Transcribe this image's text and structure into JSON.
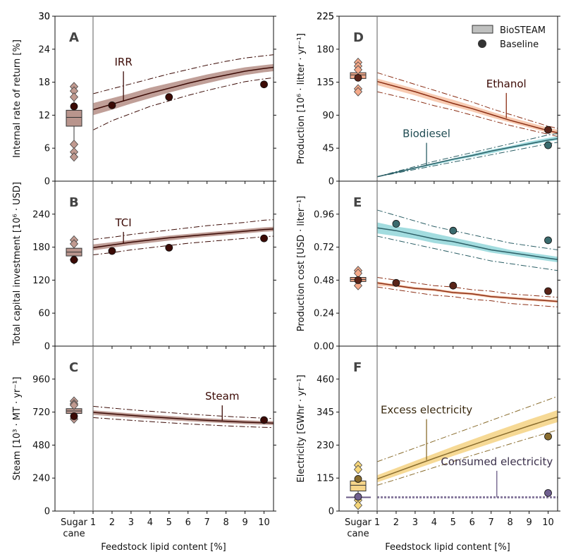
{
  "figure": {
    "legend": {
      "biosteam_label": "BioSTEAM",
      "baseline_label": "Baseline"
    },
    "xlabel": "Feedstock lipid content [%]",
    "sugarcane_label_line1": "Sugar",
    "sugarcane_label_line2": "cane",
    "xticks": [
      1,
      2,
      3,
      4,
      5,
      6,
      7,
      8,
      9,
      10
    ]
  },
  "colors": {
    "brown": "#3b0a05",
    "brown_band": "#b9958d",
    "brown_box": "#b9958d",
    "orange": "#8b2e14",
    "orange_band": "#f6c4a8",
    "orange_box": "#f2a98a",
    "teal": "#2c5f66",
    "teal_band": "#98d8dc",
    "teal_marker": "#3a6b6e",
    "gold": "#8a6d2e",
    "gold_band": "#f5d58a",
    "gold_box": "#f5d58a",
    "purple": "#6a5a86",
    "purple_marker": "#6f5f8f",
    "diamond_brown": "#c19a90",
    "diamond_orange": "#f4a98a",
    "diamond_gold": "#f6d67a"
  },
  "chart_data": [
    {
      "panel": "A",
      "type": "line",
      "ylabel": "Internal rate of return [%]",
      "ylim": [
        0,
        30
      ],
      "yticks": [
        0,
        6,
        12,
        18,
        24,
        30
      ],
      "sugarcane": {
        "box": [
          10,
          12.9
        ],
        "median": 11.6,
        "whisker": [
          7,
          15.2
        ],
        "baseline": 13.6,
        "diamonds": [
          17.2,
          16.4,
          15.3,
          6.7,
          5.3,
          4.4
        ]
      },
      "series": [
        {
          "annotation": "IRR",
          "x": [
            1,
            2,
            3,
            4,
            5,
            6,
            7,
            8,
            9,
            10,
            10.5
          ],
          "median": [
            13.0,
            14.0,
            15.0,
            16.0,
            16.9,
            17.8,
            18.6,
            19.3,
            20.0,
            20.5,
            20.7
          ],
          "band_low": [
            12.0,
            13.0,
            14.1,
            15.1,
            16.1,
            17.0,
            17.8,
            18.6,
            19.3,
            19.8,
            20.0
          ],
          "band_high": [
            14.2,
            15.1,
            16.0,
            17.0,
            17.8,
            18.6,
            19.4,
            20.1,
            20.7,
            21.1,
            21.3
          ],
          "ci_low": [
            9.3,
            11.0,
            12.3,
            13.6,
            14.6,
            15.6,
            16.5,
            17.3,
            18.1,
            18.6,
            18.8
          ],
          "ci_high": [
            15.9,
            16.8,
            17.7,
            18.6,
            19.5,
            20.3,
            21.1,
            21.8,
            22.4,
            22.8,
            23.0
          ],
          "baseline_x": [
            2,
            5,
            10
          ],
          "baseline_y": [
            13.8,
            15.3,
            17.6
          ]
        }
      ]
    },
    {
      "panel": "B",
      "type": "line",
      "ylabel": "Total capital investment [10⁶ · USD]",
      "ylim": [
        0,
        300
      ],
      "yticks": [
        0,
        60,
        120,
        180,
        240
      ],
      "sugarcane": {
        "box": [
          164,
          178
        ],
        "median": 171,
        "whisker": [
          158,
          185
        ],
        "baseline": 157,
        "diamonds": [
          193,
          186,
          157
        ]
      },
      "series": [
        {
          "annotation": "TCI",
          "x": [
            1,
            2,
            3,
            4,
            5,
            6,
            7,
            8,
            9,
            10,
            10.5
          ],
          "median": [
            179,
            184,
            189,
            193,
            197,
            200,
            203,
            206,
            209,
            212,
            213
          ],
          "band_low": [
            174,
            179,
            184,
            188,
            192,
            196,
            199,
            202,
            205,
            208,
            209
          ],
          "band_high": [
            185,
            189,
            193,
            197,
            201,
            204,
            207,
            210,
            213,
            216,
            217
          ],
          "ci_low": [
            166,
            170,
            175,
            179,
            183,
            187,
            190,
            193,
            196,
            199,
            200
          ],
          "ci_high": [
            194,
            198,
            203,
            207,
            211,
            215,
            219,
            222,
            225,
            229,
            230
          ],
          "baseline_x": [
            2,
            5,
            10
          ],
          "baseline_y": [
            173,
            179,
            196
          ]
        }
      ]
    },
    {
      "panel": "C",
      "type": "line",
      "ylabel": "Steam [10³ · MT · yr⁻¹]",
      "ylim": [
        0,
        1200
      ],
      "yticks": [
        0,
        240,
        480,
        720,
        960
      ],
      "sugarcane": {
        "box": [
          710,
          745
        ],
        "median": 728,
        "whisker": [
          680,
          770
        ],
        "baseline": 690,
        "diamonds": [
          800,
          780,
          770,
          670
        ]
      },
      "series": [
        {
          "annotation": "Steam",
          "x": [
            1,
            2,
            3,
            4,
            5,
            6,
            7,
            8,
            9,
            10,
            10.5
          ],
          "median": [
            718,
            707,
            696,
            686,
            677,
            668,
            660,
            653,
            647,
            642,
            640
          ],
          "band_low": [
            700,
            690,
            680,
            670,
            661,
            653,
            646,
            639,
            633,
            628,
            626
          ],
          "band_high": [
            733,
            722,
            711,
            701,
            692,
            683,
            675,
            668,
            661,
            656,
            654
          ],
          "ci_low": [
            680,
            670,
            660,
            651,
            642,
            634,
            627,
            620,
            614,
            609,
            607
          ],
          "ci_high": [
            762,
            749,
            737,
            726,
            716,
            706,
            697,
            689,
            682,
            676,
            673
          ],
          "baseline_x": [
            10
          ],
          "baseline_y": [
            662
          ]
        }
      ]
    },
    {
      "panel": "D",
      "type": "line",
      "ylabel": "Production [10⁶ · litter · yr⁻¹]",
      "ylim": [
        0,
        225
      ],
      "yticks": [
        0,
        45,
        90,
        135,
        180,
        225
      ],
      "sugarcane": {
        "box": [
          140,
          148
        ],
        "median": 145,
        "whisker": [
          136,
          152
        ],
        "baseline": 141,
        "diamonds": [
          162,
          157,
          152,
          126,
          122
        ]
      },
      "series": [
        {
          "annotation": "Ethanol",
          "x": [
            1,
            2,
            3,
            4,
            5,
            6,
            7,
            8,
            9,
            10,
            10.5
          ],
          "median": [
            136,
            129,
            122,
            114,
            106,
            99,
            91,
            83,
            76,
            69,
            66
          ],
          "band_low": [
            131,
            124,
            117,
            109,
            102,
            95,
            87,
            80,
            73,
            66,
            63
          ],
          "band_high": [
            140,
            133,
            126,
            118,
            111,
            103,
            95,
            87,
            80,
            73,
            70
          ],
          "ci_low": [
            122,
            116,
            110,
            103,
            97,
            90,
            83,
            76,
            70,
            64,
            61
          ],
          "ci_high": [
            148,
            140,
            132,
            124,
            116,
            108,
            99,
            91,
            83,
            75,
            72
          ],
          "baseline_x": [
            10
          ],
          "baseline_y": [
            70
          ]
        },
        {
          "annotation": "Biodiesel",
          "x": [
            1,
            2,
            3,
            4,
            5,
            6,
            7,
            8,
            9,
            10,
            10.5
          ],
          "median": [
            6,
            12,
            18,
            24,
            30,
            35,
            41,
            46,
            51,
            56,
            58
          ],
          "band_low": [
            6,
            11,
            17,
            22,
            28,
            33,
            38,
            44,
            49,
            54,
            56
          ],
          "band_high": [
            6,
            13,
            19,
            25,
            31,
            37,
            43,
            48,
            54,
            59,
            61
          ],
          "ci_low": [
            6,
            11,
            16,
            21,
            26,
            31,
            36,
            41,
            46,
            51,
            53
          ],
          "ci_high": [
            6,
            13,
            20,
            27,
            33,
            39,
            45,
            51,
            57,
            63,
            65
          ],
          "baseline_x": [
            10
          ],
          "baseline_y": [
            49
          ]
        }
      ]
    },
    {
      "panel": "E",
      "type": "line",
      "ylabel": "Production cost [USD · liter⁻¹]",
      "ylim": [
        0,
        1.2
      ],
      "yticks": [
        0.0,
        0.24,
        0.48,
        0.72,
        0.96
      ],
      "ytick_labels": [
        "0.00",
        "0.24",
        "0.48",
        "0.72",
        "0.96"
      ],
      "sugarcane": {
        "box": [
          0.47,
          0.5
        ],
        "median": 0.485,
        "whisker": [
          0.455,
          0.515
        ],
        "baseline": 0.48,
        "diamonds": [
          0.55,
          0.53,
          0.44
        ]
      },
      "series": [
        {
          "annotation": "",
          "x": [
            1,
            2,
            3,
            4,
            5,
            6,
            7,
            8,
            9,
            10,
            10.5
          ],
          "median": [
            0.86,
            0.84,
            0.81,
            0.78,
            0.76,
            0.73,
            0.7,
            0.68,
            0.66,
            0.64,
            0.63
          ],
          "band_low": [
            0.82,
            0.8,
            0.78,
            0.75,
            0.73,
            0.71,
            0.68,
            0.66,
            0.64,
            0.62,
            0.61
          ],
          "band_high": [
            0.9,
            0.87,
            0.85,
            0.82,
            0.79,
            0.76,
            0.73,
            0.7,
            0.68,
            0.66,
            0.65
          ],
          "ci_low": [
            0.8,
            0.77,
            0.74,
            0.71,
            0.68,
            0.65,
            0.62,
            0.6,
            0.58,
            0.56,
            0.55
          ],
          "ci_high": [
            0.99,
            0.95,
            0.91,
            0.87,
            0.84,
            0.81,
            0.78,
            0.75,
            0.73,
            0.71,
            0.7
          ],
          "baseline_x": [
            2,
            5,
            10
          ],
          "baseline_y": [
            0.89,
            0.84,
            0.77
          ]
        },
        {
          "annotation": "",
          "x": [
            1,
            2,
            3,
            4,
            5,
            6,
            7,
            8,
            9,
            10,
            10.5
          ],
          "median": [
            0.46,
            0.44,
            0.42,
            0.41,
            0.39,
            0.38,
            0.36,
            0.35,
            0.34,
            0.33,
            0.325
          ],
          "band_low": [
            0.44,
            0.43,
            0.41,
            0.4,
            0.38,
            0.37,
            0.35,
            0.34,
            0.33,
            0.32,
            0.315
          ],
          "band_high": [
            0.47,
            0.45,
            0.43,
            0.42,
            0.4,
            0.39,
            0.37,
            0.36,
            0.35,
            0.34,
            0.335
          ],
          "ci_low": [
            0.43,
            0.41,
            0.39,
            0.37,
            0.36,
            0.34,
            0.33,
            0.31,
            0.3,
            0.29,
            0.285
          ],
          "ci_high": [
            0.5,
            0.48,
            0.46,
            0.44,
            0.43,
            0.41,
            0.4,
            0.38,
            0.37,
            0.36,
            0.355
          ],
          "baseline_x": [
            2,
            5,
            10
          ],
          "baseline_y": [
            0.46,
            0.44,
            0.4
          ]
        }
      ]
    },
    {
      "panel": "F",
      "type": "line",
      "ylabel": "Electricity [GWhr · yr⁻¹]",
      "ylim": [
        0,
        575
      ],
      "yticks": [
        0,
        115,
        230,
        345,
        460
      ],
      "sugarcane": {
        "box": [
          70,
          105
        ],
        "median": 90,
        "whisker": [
          50,
          125
        ],
        "baseline": 112,
        "diamonds": [
          160,
          145,
          38,
          20
        ]
      },
      "sugarcane_consumed": {
        "baseline": 50,
        "line": 48
      },
      "series": [
        {
          "annotation": "Excess electricity",
          "x": [
            1,
            2,
            3,
            4,
            5,
            6,
            7,
            8,
            9,
            10,
            10.5
          ],
          "median": [
            112,
            136,
            160,
            184,
            207,
            230,
            253,
            275,
            297,
            318,
            328
          ],
          "band_low": [
            100,
            123,
            146,
            169,
            192,
            214,
            236,
            258,
            279,
            300,
            310
          ],
          "band_high": [
            125,
            150,
            175,
            200,
            225,
            249,
            273,
            296,
            319,
            341,
            352
          ],
          "ci_low": [
            90,
            110,
            131,
            152,
            173,
            194,
            214,
            234,
            254,
            273,
            283
          ],
          "ci_high": [
            172,
            196,
            220,
            244,
            268,
            292,
            316,
            340,
            364,
            388,
            400
          ],
          "baseline_x": [
            10
          ],
          "baseline_y": [
            260
          ]
        },
        {
          "annotation": "Consumed electricity",
          "x": [
            1,
            2,
            3,
            4,
            5,
            6,
            7,
            8,
            9,
            10,
            10.5
          ],
          "median": [
            48,
            48,
            48,
            48,
            48,
            48,
            48,
            48,
            48,
            48,
            48
          ],
          "baseline_x": [
            10
          ],
          "baseline_y": [
            63
          ]
        }
      ]
    }
  ]
}
